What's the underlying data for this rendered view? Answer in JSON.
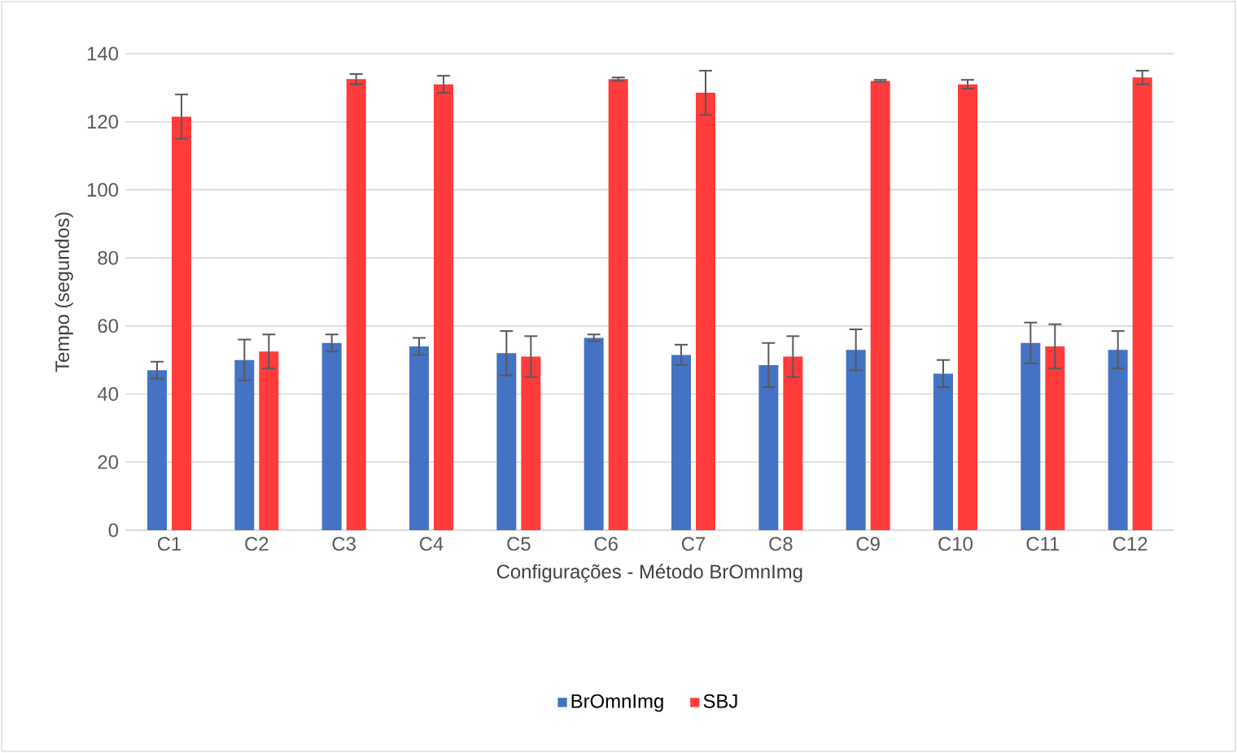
{
  "chart_data": {
    "type": "bar",
    "xlabel": "Configurações - Método  BrOmnImg",
    "ylabel": "Tempo  (segundos)",
    "categories": [
      "C1",
      "C2",
      "C3",
      "C4",
      "C5",
      "C6",
      "C7",
      "C8",
      "C9",
      "C10",
      "C11",
      "C12"
    ],
    "series": [
      {
        "name": "BrOmnImg",
        "color": "#4472c4",
        "values": [
          47,
          50,
          55,
          54,
          52,
          56.5,
          51.5,
          48.5,
          53,
          46,
          55,
          53
        ],
        "errors": [
          2.5,
          6,
          2.5,
          2.5,
          6.5,
          1,
          3,
          6.5,
          6,
          4,
          6,
          5.5
        ]
      },
      {
        "name": "SBJ",
        "color": "#ff3b3b",
        "values": [
          121.5,
          52.5,
          132.5,
          131,
          51,
          132.5,
          128.5,
          51,
          132,
          131,
          54,
          133
        ],
        "errors": [
          6.5,
          5,
          1.5,
          2.5,
          6,
          0.5,
          6.5,
          6,
          0.3,
          1.3,
          6.5,
          2
        ]
      }
    ],
    "ylim": [
      0,
      140
    ],
    "yticks": [
      0,
      20,
      40,
      60,
      80,
      100,
      120,
      140
    ],
    "grid": "y",
    "legend": "bottom"
  }
}
